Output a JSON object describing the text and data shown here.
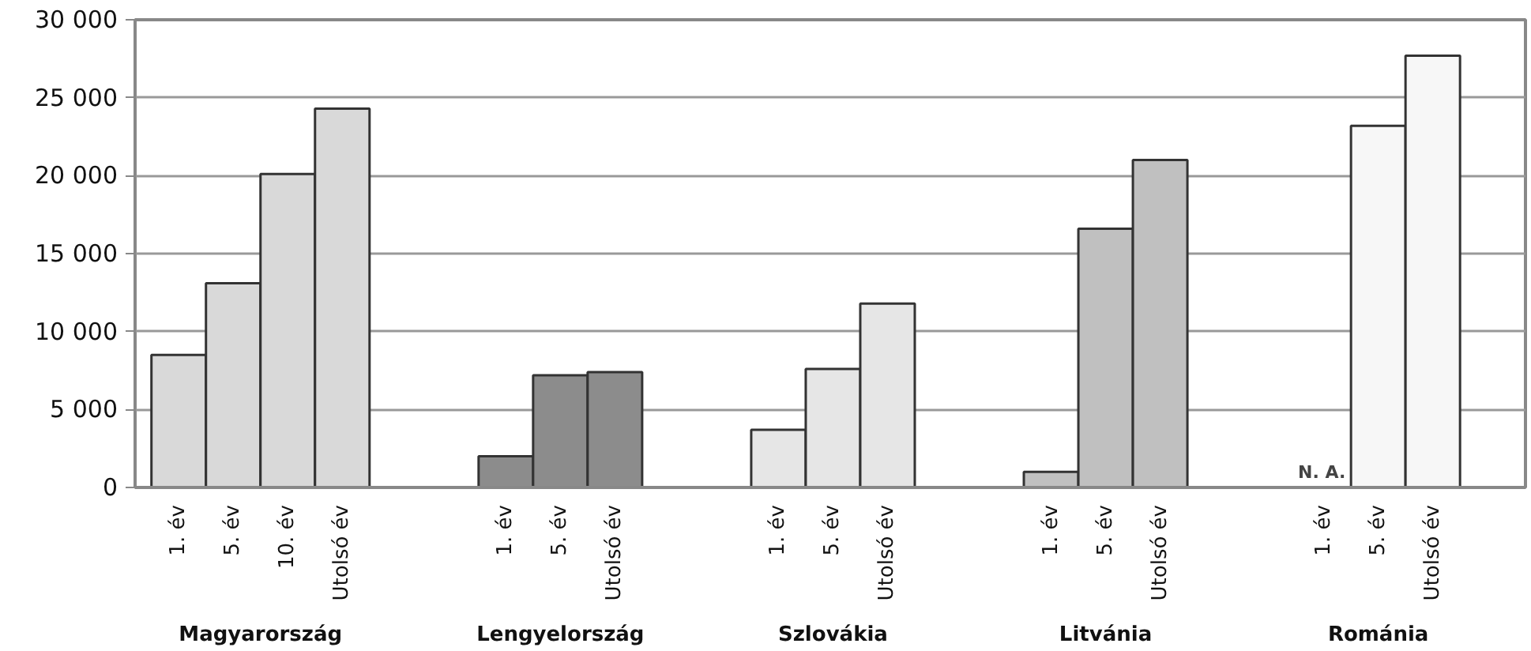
{
  "chart_data": {
    "type": "bar",
    "categories": [
      "1. év",
      "5. év",
      "10. év",
      "Utolsó év",
      null,
      null,
      "1. év",
      "5. év",
      "Utolsó év",
      null,
      null,
      "1. év",
      "5. év",
      "Utolsó év",
      null,
      null,
      "1. év",
      "5. év",
      "Utolsó év",
      null,
      null,
      "1. év",
      "5. év",
      "Utolsó év"
    ],
    "series": [
      {
        "color": "#d9d9d9",
        "values": [
          8500,
          13100,
          20100,
          24300,
          null,
          null,
          null,
          null,
          null,
          null,
          null,
          null,
          null,
          null,
          null,
          null,
          null,
          null,
          null,
          null,
          null,
          null,
          null,
          null
        ]
      },
      {
        "color": "#8c8c8c",
        "values": [
          null,
          null,
          null,
          null,
          null,
          null,
          2000,
          7200,
          7400,
          null,
          null,
          null,
          null,
          null,
          null,
          null,
          null,
          null,
          null,
          null,
          null,
          null,
          null,
          null
        ]
      },
      {
        "color": "#e6e6e6",
        "values": [
          null,
          null,
          null,
          null,
          null,
          null,
          null,
          null,
          null,
          null,
          null,
          3700,
          7600,
          11800,
          null,
          null,
          null,
          null,
          null,
          null,
          null,
          null,
          null,
          null
        ]
      },
      {
        "color": "#c0c0c0",
        "values": [
          null,
          null,
          null,
          null,
          null,
          null,
          null,
          null,
          null,
          null,
          null,
          null,
          null,
          null,
          null,
          null,
          1000,
          16600,
          21000,
          null,
          null,
          null,
          null,
          null
        ]
      },
      {
        "color": "#f7f7f7",
        "values": [
          null,
          null,
          null,
          null,
          null,
          null,
          null,
          null,
          null,
          null,
          null,
          null,
          null,
          null,
          null,
          null,
          null,
          null,
          null,
          null,
          null,
          null,
          23200,
          27700
        ]
      }
    ],
    "annotations": [
      "Magyarország",
      "Lengyelország",
      "Szlovákia",
      "Litvánia",
      "Románia",
      "N. A."
    ],
    "ylim": [
      0,
      30000
    ],
    "yticks": [
      {
        "value": 0,
        "label": "0"
      },
      {
        "value": 5000,
        "label": "5 000"
      },
      {
        "value": 10000,
        "label": "10 000"
      },
      {
        "value": 15000,
        "label": "15 000"
      },
      {
        "value": 20000,
        "label": "20 000"
      },
      {
        "value": 25000,
        "label": "25 000"
      },
      {
        "value": 30000,
        "label": "30 000"
      }
    ],
    "grid": "y"
  }
}
